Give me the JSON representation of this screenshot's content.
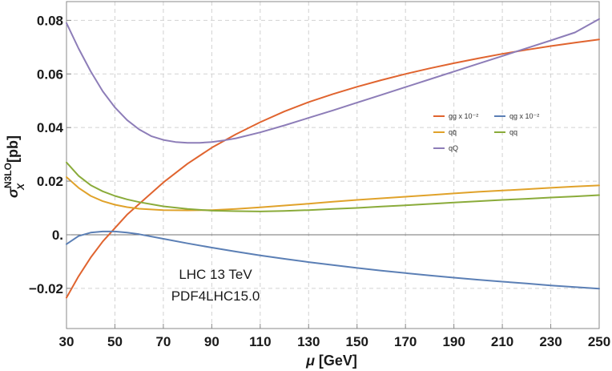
{
  "chart_data": {
    "type": "line",
    "title": "",
    "xlabel": "μ [GeV]",
    "ylabel": "σ_X^N3LO [pb]",
    "ylabel_parts": {
      "main": "σ",
      "sub": "X",
      "sup": "N3LO",
      "unit": "[pb]"
    },
    "xlim": [
      30,
      250
    ],
    "ylim": [
      -0.035,
      0.087
    ],
    "xticks": [
      30,
      50,
      70,
      90,
      110,
      130,
      150,
      170,
      190,
      210,
      230,
      250
    ],
    "xtick_labels": [
      "30",
      "50",
      "70",
      "90",
      "110",
      "130",
      "150",
      "170",
      "190",
      "210",
      "230",
      "250"
    ],
    "yticks": [
      -0.02,
      0,
      0.02,
      0.04,
      0.06,
      0.08
    ],
    "ytick_labels": [
      "−0.02",
      "0.",
      "0.02",
      "0.04",
      "0.06",
      "0.08"
    ],
    "grid": true,
    "legend_position": "right",
    "annotations": [
      "LHC 13 TeV",
      "PDF4LHC15.0"
    ],
    "series": [
      {
        "name": "gg x 10⁻²",
        "color": "#e0642f",
        "x": [
          30,
          35,
          40,
          45,
          50,
          55,
          60,
          70,
          80,
          90,
          100,
          110,
          120,
          130,
          140,
          150,
          160,
          170,
          180,
          190,
          200,
          210,
          220,
          230,
          240,
          250
        ],
        "y": [
          -0.0235,
          -0.0155,
          -0.0085,
          -0.0025,
          0.0025,
          0.0075,
          0.0115,
          0.0195,
          0.0265,
          0.0325,
          0.0375,
          0.042,
          0.046,
          0.0495,
          0.0525,
          0.0552,
          0.0577,
          0.06,
          0.0621,
          0.064,
          0.0658,
          0.0675,
          0.069,
          0.0704,
          0.0717,
          0.0729
        ]
      },
      {
        "name": "qg x 10⁻²",
        "color": "#5b7fb5",
        "x": [
          30,
          35,
          40,
          45,
          50,
          55,
          60,
          70,
          80,
          90,
          100,
          110,
          120,
          130,
          140,
          150,
          160,
          170,
          180,
          190,
          200,
          210,
          220,
          230,
          240,
          250
        ],
        "y": [
          -0.0035,
          -0.0005,
          0.0008,
          0.0012,
          0.0012,
          0.0008,
          0.0002,
          -0.0015,
          -0.0032,
          -0.0048,
          -0.0063,
          -0.0077,
          -0.009,
          -0.0102,
          -0.0113,
          -0.0124,
          -0.0134,
          -0.0143,
          -0.0152,
          -0.016,
          -0.0168,
          -0.0175,
          -0.0182,
          -0.0189,
          -0.0195,
          -0.0201
        ]
      },
      {
        "name": "qq̄",
        "color": "#e0a22a",
        "x": [
          30,
          35,
          40,
          45,
          50,
          55,
          60,
          70,
          80,
          90,
          100,
          110,
          120,
          130,
          140,
          150,
          160,
          170,
          180,
          190,
          200,
          210,
          220,
          230,
          240,
          250
        ],
        "y": [
          0.0215,
          0.0175,
          0.0145,
          0.0125,
          0.0112,
          0.0103,
          0.0097,
          0.0092,
          0.0091,
          0.0092,
          0.0096,
          0.0102,
          0.0109,
          0.0116,
          0.0123,
          0.013,
          0.0136,
          0.0142,
          0.0148,
          0.0154,
          0.016,
          0.0165,
          0.017,
          0.0175,
          0.018,
          0.0184
        ]
      },
      {
        "name": "qq",
        "color": "#8aab3a",
        "x": [
          30,
          35,
          40,
          45,
          50,
          55,
          60,
          70,
          80,
          90,
          100,
          110,
          120,
          130,
          140,
          150,
          160,
          170,
          180,
          190,
          200,
          210,
          220,
          230,
          240,
          250
        ],
        "y": [
          0.027,
          0.022,
          0.0185,
          0.0162,
          0.0145,
          0.0132,
          0.0122,
          0.0106,
          0.0096,
          0.009,
          0.0088,
          0.0087,
          0.0089,
          0.0092,
          0.0096,
          0.01,
          0.0105,
          0.011,
          0.0115,
          0.012,
          0.0125,
          0.013,
          0.0134,
          0.0139,
          0.0143,
          0.0148
        ]
      },
      {
        "name": "qQ",
        "color": "#8d7db8",
        "x": [
          30,
          35,
          40,
          45,
          50,
          55,
          60,
          65,
          70,
          75,
          80,
          85,
          90,
          95,
          100,
          110,
          120,
          130,
          140,
          150,
          160,
          170,
          180,
          190,
          200,
          210,
          220,
          230,
          240,
          250
        ],
        "y": [
          0.079,
          0.0695,
          0.061,
          0.0535,
          0.0475,
          0.0428,
          0.0393,
          0.0368,
          0.0354,
          0.0346,
          0.0343,
          0.0343,
          0.0346,
          0.0352,
          0.036,
          0.0382,
          0.0408,
          0.0436,
          0.0464,
          0.0493,
          0.0522,
          0.0551,
          0.058,
          0.0609,
          0.0638,
          0.0667,
          0.0696,
          0.0725,
          0.0755,
          0.0805
        ]
      }
    ]
  }
}
